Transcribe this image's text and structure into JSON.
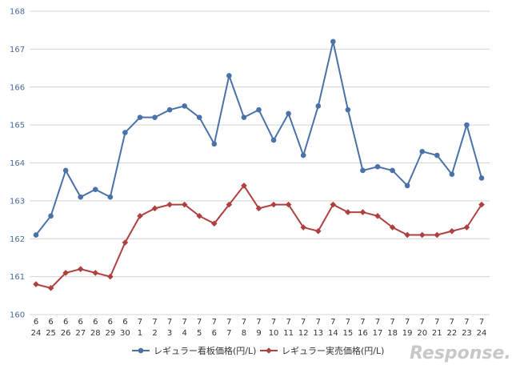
{
  "chart_data": {
    "type": "line",
    "x_top": [
      "6",
      "6",
      "6",
      "6",
      "6",
      "6",
      "6",
      "7",
      "7",
      "7",
      "7",
      "7",
      "7",
      "7",
      "7",
      "7",
      "7",
      "7",
      "7",
      "7",
      "7",
      "7",
      "7",
      "7",
      "7",
      "7",
      "7",
      "7",
      "7",
      "7",
      "7"
    ],
    "x_bottom": [
      "24",
      "25",
      "26",
      "27",
      "28",
      "29",
      "30",
      "1",
      "2",
      "3",
      "4",
      "5",
      "6",
      "7",
      "8",
      "9",
      "10",
      "11",
      "12",
      "13",
      "14",
      "15",
      "16",
      "17",
      "18",
      "19",
      "20",
      "21",
      "22",
      "23",
      "24"
    ],
    "ylim": [
      160,
      168
    ],
    "yticks": [
      160,
      161,
      162,
      163,
      164,
      165,
      166,
      167,
      168
    ],
    "grid": true,
    "legend_position": "bottom",
    "series": [
      {
        "name": "レギュラー看板価格(円/L)",
        "color": "#4a72a8",
        "marker": "circle",
        "values": [
          162.1,
          162.6,
          163.8,
          163.1,
          163.3,
          163.1,
          164.8,
          165.2,
          165.2,
          165.4,
          165.5,
          165.2,
          164.5,
          166.3,
          165.2,
          165.4,
          164.6,
          165.3,
          164.2,
          165.5,
          167.2,
          165.4,
          163.8,
          163.9,
          163.8,
          163.4,
          164.3,
          164.2,
          163.7,
          165.0,
          163.6
        ]
      },
      {
        "name": "レギュラー実売価格(円/L)",
        "color": "#b04040",
        "marker": "diamond",
        "values": [
          160.8,
          160.7,
          161.1,
          161.2,
          161.1,
          161.0,
          161.9,
          162.6,
          162.8,
          162.9,
          162.9,
          162.6,
          162.4,
          162.9,
          163.4,
          162.8,
          162.9,
          162.9,
          162.3,
          162.2,
          162.9,
          162.7,
          162.7,
          162.6,
          162.3,
          162.1,
          162.1,
          162.1,
          162.2,
          162.3,
          162.9
        ]
      }
    ]
  },
  "watermark": "Response."
}
